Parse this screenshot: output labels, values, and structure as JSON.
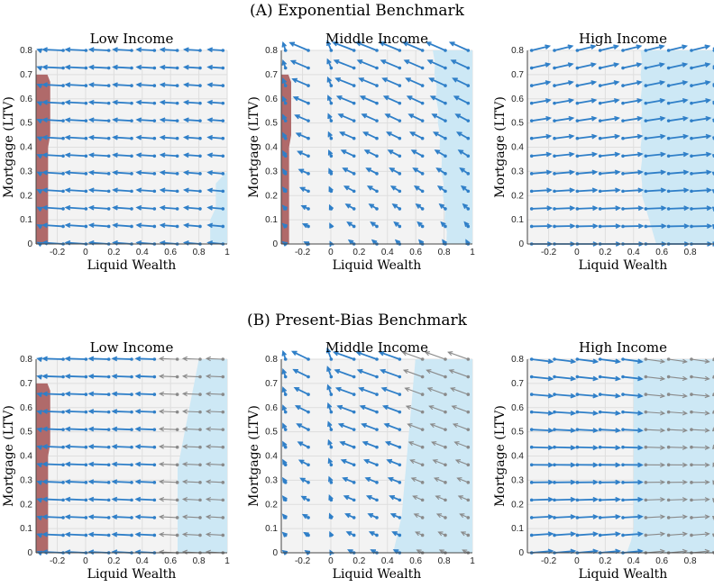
{
  "panels": [
    {
      "label": "(A) Exponential Benchmark"
    },
    {
      "label": "(B) Present-Bias Benchmark"
    }
  ],
  "colors": {
    "arrow_blue": "#2f7fc8",
    "arrow_gray": "#8a8a8a",
    "region_blue": "#cde8f5",
    "region_red": "#b06a6a",
    "background": "#f3f3f3",
    "grid": "#dedede"
  },
  "chart_data": [
    {
      "type": "quiver",
      "panel": "A",
      "title": "Low Income",
      "xlabel": "Liquid Wealth",
      "ylabel": "Mortgage (LTV)",
      "xlim": [
        -0.35,
        1.0
      ],
      "ylim": [
        0,
        0.8
      ],
      "xticks": [
        "-0.2",
        "0",
        "0.2",
        "0.4",
        "0.6",
        "0.8",
        "1"
      ],
      "yticks": [
        "0",
        "0.1",
        "0.2",
        "0.3",
        "0.4",
        "0.5",
        "0.6",
        "0.7",
        "0.8"
      ],
      "arrow_field": "all arrows point left (decumulation), shorter near high liquid wealth",
      "blue_region_from_x": 0.92,
      "red_region_to_x": -0.25,
      "red_region_to_y": 0.7,
      "gray_arrows_from_x": null
    },
    {
      "type": "quiver",
      "panel": "A",
      "title": "Middle Income",
      "xlabel": "Liquid Wealth",
      "ylabel": "Mortgage (LTV)",
      "xlim": [
        -0.35,
        1.0
      ],
      "ylim": [
        0,
        0.8
      ],
      "xticks": [
        "-0.2",
        "0",
        "0.2",
        "0.4",
        "0.6",
        "0.8",
        "1"
      ],
      "yticks": [
        "0",
        "0.1",
        "0.2",
        "0.3",
        "0.4",
        "0.5",
        "0.6",
        "0.7",
        "0.8"
      ],
      "arrow_field": "mixed: rightward at low wealth, leftward at high wealth",
      "blue_region_from_x": 0.72,
      "red_region_to_x": -0.28,
      "red_region_to_y": 0.7,
      "gray_arrows_from_x": null
    },
    {
      "type": "quiver",
      "panel": "A",
      "title": "High Income",
      "xlabel": "Liquid Wealth",
      "ylabel": "Mortgage (LTV)",
      "xlim": [
        -0.35,
        1.0
      ],
      "ylim": [
        0,
        0.8
      ],
      "xticks": [
        "-0.2",
        "0",
        "0.2",
        "0.4",
        "0.6",
        "0.8"
      ],
      "yticks": [
        "0",
        "0.1",
        "0.2",
        "0.3",
        "0.4",
        "0.5",
        "0.6",
        "0.7",
        "0.8"
      ],
      "arrow_field": "all arrows point right (accumulation)",
      "blue_region_from_x": 0.45,
      "red_region_to_x": null,
      "red_region_to_y": null,
      "gray_arrows_from_x": null
    },
    {
      "type": "quiver",
      "panel": "B",
      "title": "Low Income",
      "xlabel": "Liquid Wealth",
      "ylabel": "Mortgage (LTV)",
      "xlim": [
        -0.35,
        1.0
      ],
      "ylim": [
        0,
        0.8
      ],
      "xticks": [
        "-0.2",
        "0",
        "0.2",
        "0.4",
        "0.6",
        "0.8",
        "1"
      ],
      "yticks": [
        "0",
        "0.1",
        "0.2",
        "0.3",
        "0.4",
        "0.5",
        "0.6",
        "0.7",
        "0.8"
      ],
      "arrow_field": "all arrows point left; gray arrows in blue region",
      "blue_region_from_x": 0.65,
      "red_region_to_x": -0.25,
      "red_region_to_y": 0.7,
      "gray_arrows_from_x": 0.6
    },
    {
      "type": "quiver",
      "panel": "B",
      "title": "Middle Income",
      "xlabel": "Liquid Wealth",
      "ylabel": "Mortgage (LTV)",
      "xlim": [
        -0.35,
        1.0
      ],
      "ylim": [
        0,
        0.8
      ],
      "xticks": [
        "-0.2",
        "0",
        "0.2",
        "0.4",
        "0.6",
        "0.8",
        "1"
      ],
      "yticks": [
        "0",
        "0.1",
        "0.2",
        "0.3",
        "0.4",
        "0.5",
        "0.6",
        "0.7",
        "0.8"
      ],
      "arrow_field": "mostly leftward; gray arrows in blue region",
      "blue_region_from_x": 0.5,
      "red_region_to_x": null,
      "red_region_to_y": null,
      "gray_arrows_from_x": 0.55
    },
    {
      "type": "quiver",
      "panel": "B",
      "title": "High Income",
      "xlabel": "Liquid Wealth",
      "ylabel": "Mortgage (LTV)",
      "xlim": [
        -0.35,
        1.0
      ],
      "ylim": [
        0,
        0.8
      ],
      "xticks": [
        "-0.2",
        "0",
        "0.2",
        "0.4",
        "0.6",
        "0.8"
      ],
      "yticks": [
        "0",
        "0.1",
        "0.2",
        "0.3",
        "0.4",
        "0.5",
        "0.6",
        "0.7",
        "0.8"
      ],
      "arrow_field": "rightward; gray arrows in blue region",
      "blue_region_from_x": 0.4,
      "red_region_to_x": null,
      "red_region_to_y": null,
      "gray_arrows_from_x": 0.45
    }
  ]
}
